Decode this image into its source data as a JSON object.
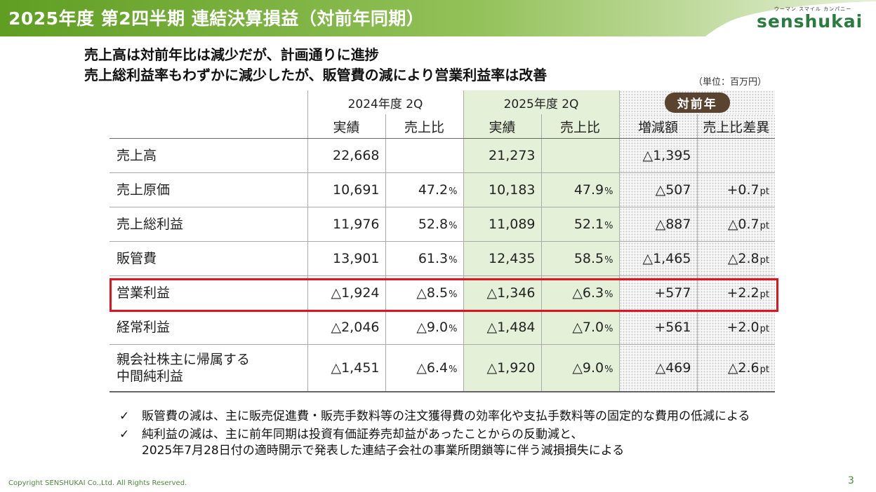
{
  "header": {
    "title": "2025年度 第2四半期 連結決算損益（対前年同期）",
    "logo_tagline": "ウーマン スマイル カンパニー",
    "logo_name": "senshukai",
    "colors": {
      "bar_start": "#6ca52b",
      "bar_end": "#b5d58a",
      "logo": "#2a7b3f"
    }
  },
  "headline": {
    "line1": "売上高は対前年比は減少だが、計画通りに進捗",
    "line2": "売上総利益率もわずかに減少したが、販管費の減により営業利益率は改善"
  },
  "unit_note": "（単位：百万円）",
  "table": {
    "groups": {
      "prev": "2024年度 2Q",
      "curr": "2025年度 2Q",
      "diff": "対前年"
    },
    "subheaders": {
      "prev_actual": "実績",
      "prev_ratio": "売上比",
      "curr_actual": "実績",
      "curr_ratio": "売上比",
      "diff_amount": "増減額",
      "diff_ratio": "売上比差異"
    },
    "rows": [
      {
        "label": "売上高",
        "prev_actual": "22,668",
        "prev_ratio": "",
        "prev_ratio_sfx": "",
        "curr_actual": "21,273",
        "curr_ratio": "",
        "curr_ratio_sfx": "",
        "diff_amount": "△1,395",
        "diff_ratio": "",
        "diff_ratio_sfx": ""
      },
      {
        "label": "売上原価",
        "prev_actual": "10,691",
        "prev_ratio": "47.2",
        "prev_ratio_sfx": "%",
        "curr_actual": "10,183",
        "curr_ratio": "47.9",
        "curr_ratio_sfx": "%",
        "diff_amount": "△507",
        "diff_ratio": "+0.7",
        "diff_ratio_sfx": "pt"
      },
      {
        "label": "売上総利益",
        "prev_actual": "11,976",
        "prev_ratio": "52.8",
        "prev_ratio_sfx": "%",
        "curr_actual": "11,089",
        "curr_ratio": "52.1",
        "curr_ratio_sfx": "%",
        "diff_amount": "△887",
        "diff_ratio": "△0.7",
        "diff_ratio_sfx": "pt"
      },
      {
        "label": "販管費",
        "prev_actual": "13,901",
        "prev_ratio": "61.3",
        "prev_ratio_sfx": "%",
        "curr_actual": "12,435",
        "curr_ratio": "58.5",
        "curr_ratio_sfx": "%",
        "diff_amount": "△1,465",
        "diff_ratio": "△2.8",
        "diff_ratio_sfx": "pt"
      },
      {
        "label": "営業利益",
        "prev_actual": "△1,924",
        "prev_ratio": "△8.5",
        "prev_ratio_sfx": "%",
        "curr_actual": "△1,346",
        "curr_ratio": "△6.3",
        "curr_ratio_sfx": "%",
        "diff_amount": "+577",
        "diff_ratio": "+2.2",
        "diff_ratio_sfx": "pt"
      },
      {
        "label": "経常利益",
        "prev_actual": "△2,046",
        "prev_ratio": "△9.0",
        "prev_ratio_sfx": "%",
        "curr_actual": "△1,484",
        "curr_ratio": "△7.0",
        "curr_ratio_sfx": "%",
        "diff_amount": "+561",
        "diff_ratio": "+2.0",
        "diff_ratio_sfx": "pt"
      },
      {
        "label_line1": "親会社株主に帰属する",
        "label_line2": "中間純利益",
        "prev_actual": "△1,451",
        "prev_ratio": "△6.4",
        "prev_ratio_sfx": "%",
        "curr_actual": "△1,920",
        "curr_ratio": "△9.0",
        "curr_ratio_sfx": "%",
        "diff_amount": "△469",
        "diff_ratio": "△2.6",
        "diff_ratio_sfx": "pt"
      }
    ],
    "highlight_color": "#e0131f",
    "current_year_bg": "#e4f1d8",
    "badge_bg": "#5a4430"
  },
  "notes": {
    "check_mark": "✓",
    "note1": "販管費の減は、主に販売促進費・販売手数料等の注文獲得費の効率化や支払手数料等の固定的な費用の低減による",
    "note2_line1": "純利益の減は、主に前年同期は投資有価証券売却益があったことからの反動減と、",
    "note2_line2": "2025年7月28日付の適時開示で発表した連結子会社の事業所閉鎖等に伴う減損損失による"
  },
  "footer": {
    "copyright": "Copyright SENSHUKAI Co.,Ltd. All Rights Reserved.",
    "page_number": "3"
  }
}
